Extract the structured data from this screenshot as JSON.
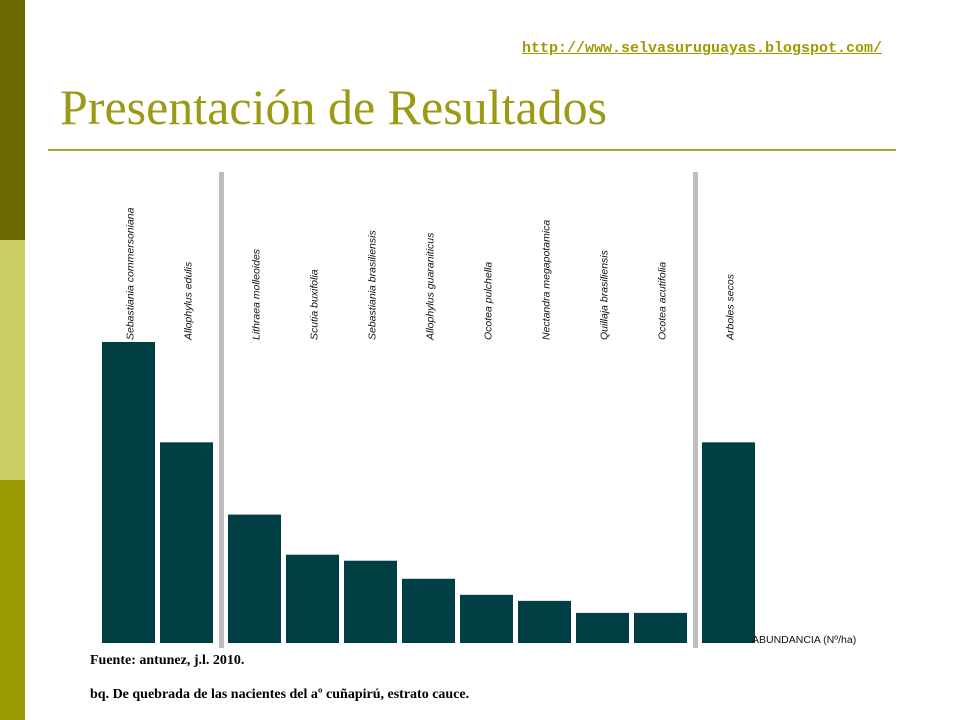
{
  "slide": {
    "url": "http://www.selvasuruguayas.blogspot.com/",
    "title": "Presentación de Resultados",
    "source": "Fuente: antunez, j.l. 2010.",
    "caption": "bq. De quebrada de las nacientes del aº cuñapirú, estrato cauce.",
    "colors": {
      "sidebar": [
        "#6b6a00",
        "#cccf64",
        "#999900"
      ],
      "title": "#9c9a14",
      "bar": "#003f44",
      "separator": "#bdbdbd"
    }
  },
  "chart_data": {
    "type": "bar",
    "categories": [
      "Sebastiania commersoniana",
      "Allophylus edulis",
      "Lithraea molleoides",
      "Scutia buxifolia",
      "Sebastiania brasiliensis",
      "Allophylus guaraniticus",
      "Ocotea pulchella",
      "Nectandra megapotamica",
      "Quillaja brasiliensis",
      "Ocotea acutifolia",
      "Arboles secos"
    ],
    "values": [
      300,
      200,
      128,
      88,
      82,
      64,
      48,
      42,
      30,
      30,
      200
    ],
    "groups": [
      [
        0,
        1
      ],
      [
        2,
        3,
        4,
        5,
        6,
        7,
        8,
        9
      ],
      [
        10
      ]
    ],
    "title": "",
    "xlabel": "ABUNDANCIA (Nº/ha)",
    "ylabel": "",
    "ylim": [
      0,
      300
    ],
    "grid": false,
    "legend": "none"
  }
}
